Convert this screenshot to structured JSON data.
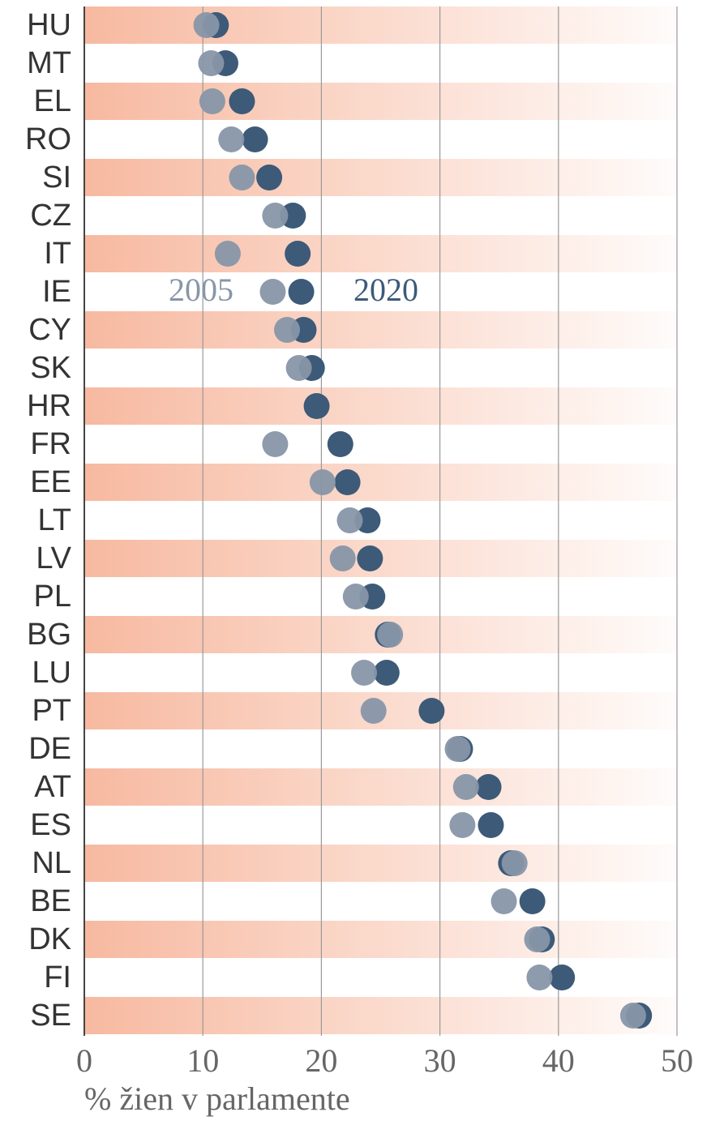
{
  "chart_data": {
    "type": "dot",
    "x_label": "% žien v parlamente",
    "categories": [
      "HU",
      "MT",
      "EL",
      "RO",
      "SI",
      "CZ",
      "IT",
      "IE",
      "CY",
      "SK",
      "HR",
      "FR",
      "EE",
      "LT",
      "LV",
      "PL",
      "BG",
      "LU",
      "PT",
      "DE",
      "AT",
      "ES",
      "NL",
      "BE",
      "DK",
      "FI",
      "SE"
    ],
    "series": [
      {
        "name": "2020",
        "color": "#3d5a78",
        "values": [
          11.1,
          11.9,
          13.3,
          14.4,
          15.6,
          17.6,
          18.0,
          18.3,
          18.5,
          19.2,
          19.6,
          21.6,
          22.2,
          23.9,
          24.1,
          24.3,
          25.6,
          25.5,
          29.3,
          31.7,
          34.1,
          34.3,
          36.0,
          37.8,
          38.6,
          40.3,
          46.8
        ]
      },
      {
        "name": "2005",
        "color": "#8796a8",
        "values": [
          10.3,
          10.7,
          10.8,
          12.4,
          13.3,
          16.1,
          12.1,
          15.9,
          17.1,
          18.1,
          null,
          16.1,
          20.1,
          22.4,
          21.8,
          22.9,
          25.8,
          23.6,
          24.4,
          31.5,
          32.2,
          31.9,
          36.3,
          35.4,
          38.2,
          38.4,
          46.3
        ]
      }
    ],
    "band_color": "#f7b9a0",
    "xlim": [
      0,
      50
    ],
    "xticks": [
      0,
      10,
      20,
      30,
      40,
      50
    ],
    "grid": true
  }
}
